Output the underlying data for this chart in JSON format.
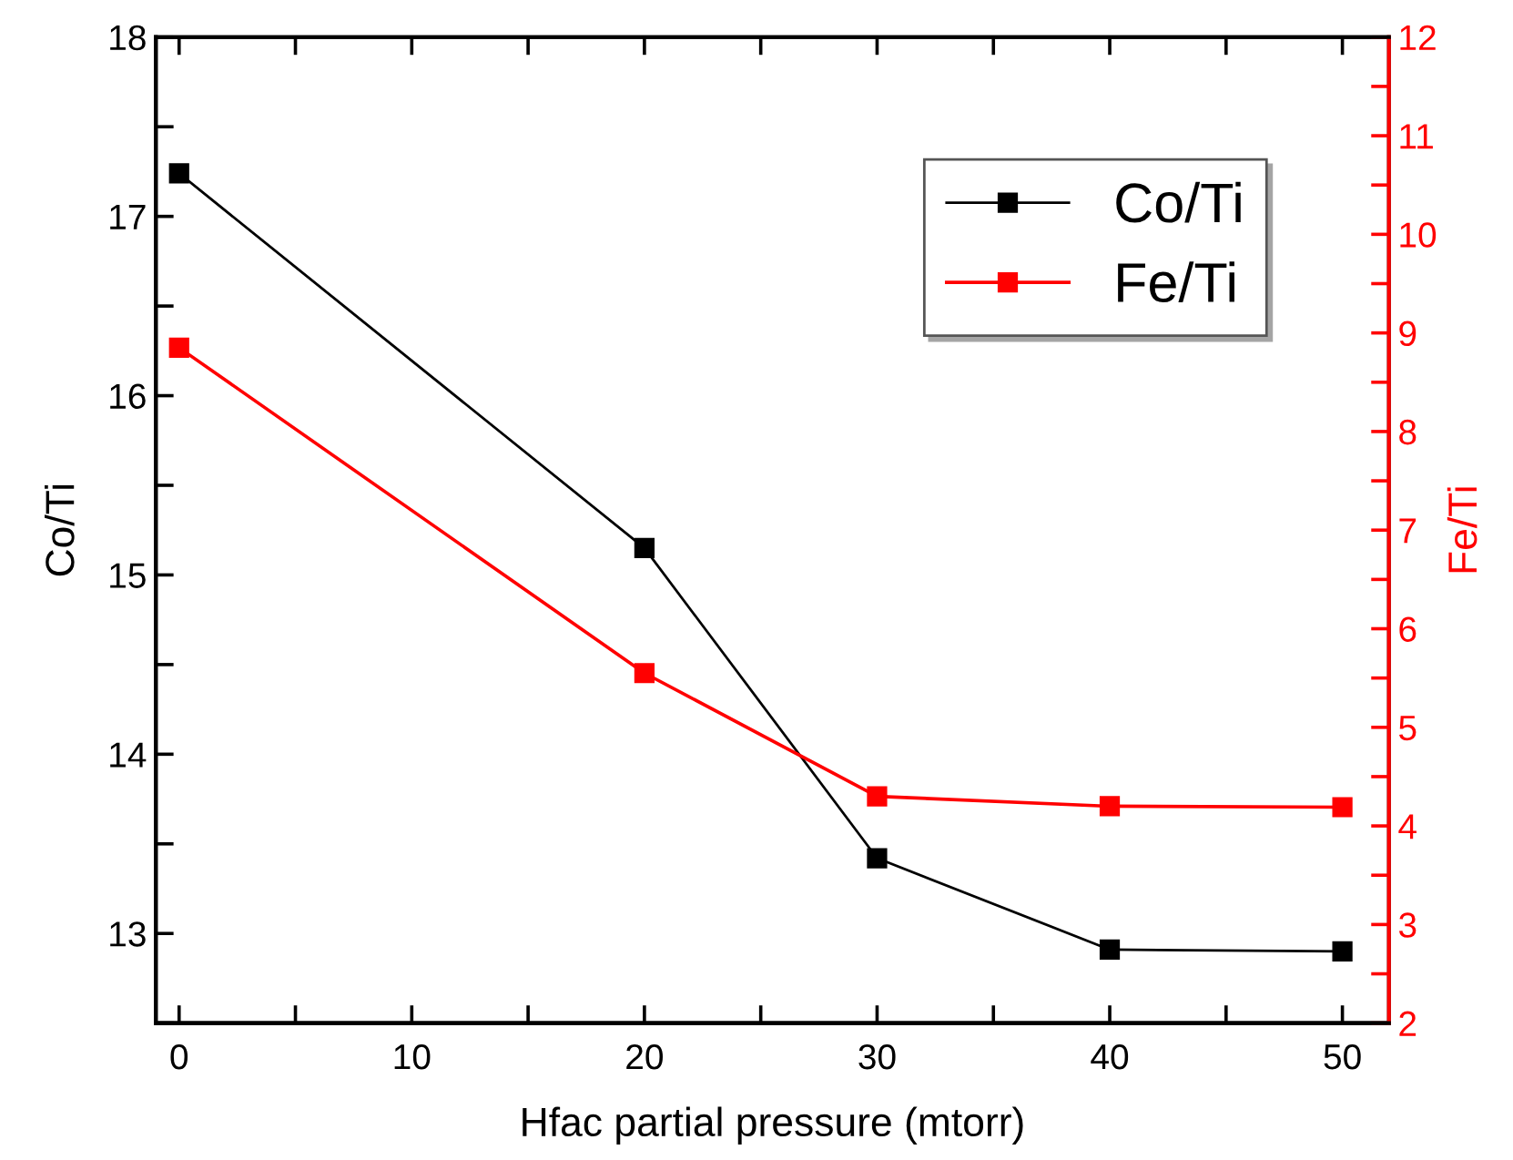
{
  "chart_data": {
    "type": "line",
    "xlabel": "Hfac partial pressure (mtorr)",
    "ylabel": "Co/Ti",
    "y2label": "Fe/Ti",
    "x": [
      0,
      20,
      30,
      40,
      50
    ],
    "series": [
      {
        "name": "Co/Ti",
        "color": "#000000",
        "values": [
          17.24,
          15.15,
          13.42,
          12.91,
          12.9
        ]
      },
      {
        "name": "Fe/Ti",
        "color": "#ff0000",
        "axis": "y2",
        "values": [
          8.85,
          5.55,
          4.3,
          4.2,
          4.19
        ]
      }
    ],
    "xlim": [
      -1,
      52
    ],
    "ylim": [
      12.5,
      18
    ],
    "y2lim": [
      2,
      12
    ],
    "xticks": [
      0,
      {
        "value": 5,
        "label": null
      },
      10,
      {
        "value": 15,
        "label": null
      },
      20,
      {
        "value": 25,
        "label": null
      },
      30,
      {
        "value": 35,
        "label": null
      },
      40,
      {
        "value": 45,
        "label": null
      },
      50
    ],
    "yticks": [
      {
        "value": 12.5,
        "label": null
      },
      13,
      {
        "value": 13.5,
        "label": null
      },
      14,
      {
        "value": 14.5,
        "label": null
      },
      15,
      {
        "value": 15.5,
        "label": null
      },
      16,
      {
        "value": 16.5,
        "label": null
      },
      17,
      {
        "value": 17.5,
        "label": null
      },
      18
    ],
    "y2ticks": [
      2,
      {
        "value": 2.5,
        "label": null
      },
      3,
      {
        "value": 3.5,
        "label": null
      },
      4,
      {
        "value": 4.5,
        "label": null
      },
      5,
      {
        "value": 5.5,
        "label": null
      },
      6,
      {
        "value": 6.5,
        "label": null
      },
      7,
      {
        "value": 7.5,
        "label": null
      },
      8,
      {
        "value": 8.5,
        "label": null
      },
      9,
      {
        "value": 9.5,
        "label": null
      },
      10,
      {
        "value": 10.5,
        "label": null
      },
      11,
      {
        "value": 11.5,
        "label": null
      },
      12
    ],
    "marker": "square",
    "line_style": "solid",
    "legend": "top right",
    "grid": false
  }
}
